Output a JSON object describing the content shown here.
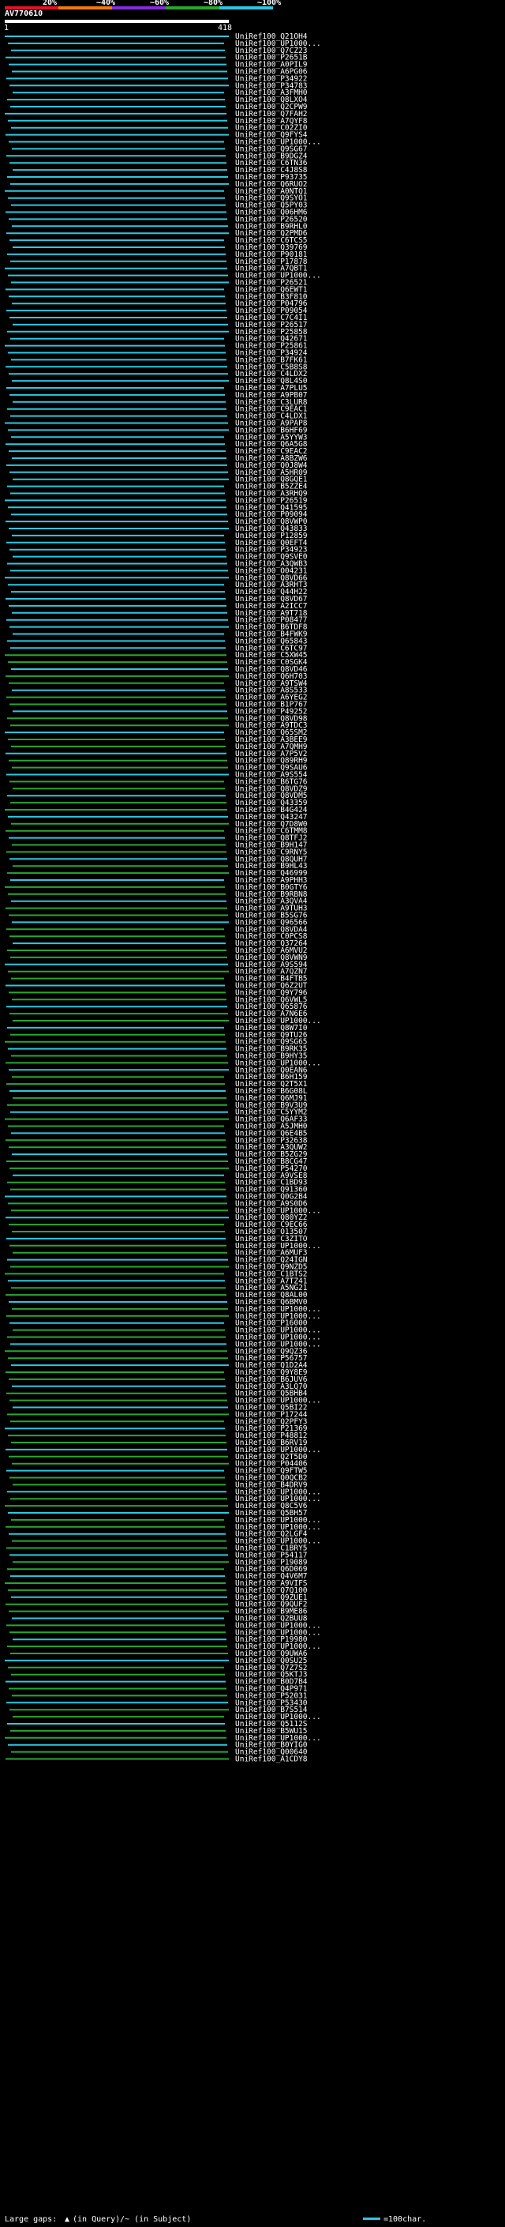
{
  "chart_data": {
    "type": "alignment-overview",
    "title": "AV770610",
    "query_start_label": "1",
    "query_end_label": "418",
    "identity_legend": [
      {
        "label": "20%",
        "color": "#e8102a"
      },
      {
        "label": "~40%",
        "color": "#f07a10"
      },
      {
        "label": "~60%",
        "color": "#8a2be2"
      },
      {
        "label": "~80%",
        "color": "#2aa630"
      },
      {
        "label": "~100%",
        "color": "#2ec7e0"
      }
    ],
    "query_length": 418,
    "footer": {
      "gaps_text": "Large gaps: ",
      "gaps_query": "(in Query)",
      "gaps_subject": "/~ (in Subject)",
      "scale_text": "=100char."
    },
    "hits": [
      "UniRef100_Q21OH4",
      "UniRef100_UP1000...",
      "UniRef100_Q7CZ23",
      "UniRef100_P2651B",
      "UniRef100_A0PIL9",
      "UniRef100_A6PG06",
      "UniRef100_P34922",
      "UniRef100_P34783",
      "UniRef100_A3FMH0",
      "UniRef100_Q8LXO4",
      "UniRef100_Q2CPW9",
      "UniRef100_Q7FAH2",
      "UniRef100_A7QYF8",
      "UniRef100_C02ZI0",
      "UniRef100_Q9FYS4",
      "UniRef100_UP1000...",
      "UniRef100_Q9SG67",
      "UniRef100_B9DGZ4",
      "UniRef100_C6TN36",
      "UniRef100_C4J8S8",
      "UniRef100_P93735",
      "UniRef100_Q6RUO2",
      "UniRef100_A0NTQ1",
      "UniRef100_Q9SYO1",
      "UniRef100_Q5PY03",
      "UniRef100_Q06HM6",
      "UniRef100_P26520",
      "UniRef100_B9RHL0",
      "UniRef100_Q2PMD6",
      "UniRef100_C6TCS5",
      "UniRef100_Q39769",
      "UniRef100_P90181",
      "UniRef100_P17878",
      "UniRef100_A7QBT1",
      "UniRef100_UP1000...",
      "UniRef100_P26521",
      "UniRef100_Q6EWT1",
      "UniRef100_B3F810",
      "UniRef100_P04796",
      "UniRef100_P09054",
      "UniRef100_C7C4I1",
      "UniRef100_P26517",
      "UniRef100_P25858",
      "UniRef100_Q42671",
      "UniRef100_P25861",
      "UniRef100_P34924",
      "UniRef100_B7FK61",
      "UniRef100_C5B8S8",
      "UniRef100_C4LDX2",
      "UniRef100_Q8L4S0",
      "UniRef100_A7PLU5",
      "UniRef100_A9PB07",
      "UniRef100_C3LUR8",
      "UniRef100_C9EAC1",
      "UniRef100_C4LDX1",
      "UniRef100_A9PAP8",
      "UniRef100_B6HF69",
      "UniRef100_A5YYW3",
      "UniRef100_Q6A5G8",
      "UniRef100_C9EAC2",
      "UniRef100_A8BZW6",
      "UniRef100_Q0J8W4",
      "UniRef100_A5HR09",
      "UniRef100_Q8GQE1",
      "UniRef100_B5ZZE4",
      "UniRef100_A3RHQ9",
      "UniRef100_P26519",
      "UniRef100_Q41595",
      "UniRef100_P09094",
      "UniRef100_Q8VWP0",
      "UniRef100_Q43833",
      "UniRef100_P12859",
      "UniRef100_Q0EFT4",
      "UniRef100_P34923",
      "UniRef100_Q9SVE0",
      "UniRef100_A3QWB3",
      "UniRef100_O04231",
      "UniRef100_Q8VD66",
      "UniRef100_A3RHT3",
      "UniRef100_Q44H22",
      "UniRef100_Q8VD67",
      "UniRef100_A2ICC7",
      "UniRef100_A9T718",
      "UniRef100_P08477",
      "UniRef100_B6TDF8",
      "UniRef100_B4FWK9",
      "UniRef100_Q65843",
      "UniRef100_C6TC97",
      "UniRef100_C5XW45",
      "UniRef100_C0SGK4",
      "UniRef100_Q8VD46",
      "UniRef100_Q6H703",
      "UniRef100_A9TSW4",
      "UniRef100_A8S533",
      "UniRef100_A6YEG2",
      "UniRef100_B1P767",
      "UniRef100_P49252",
      "UniRef100_Q8VD98",
      "UniRef100_A9TDC3",
      "UniRef100_Q65SM2",
      "UniRef100_A3BEE9",
      "UniRef100_A7QMH9",
      "UniRef100_A7P5V2",
      "UniRef100_Q89RH9",
      "UniRef100_Q9SAU6",
      "UniRef100_A9S554",
      "UniRef100_B6TG76",
      "UniRef100_Q8VDZ9",
      "UniRef100_Q8VDM5",
      "UniRef100_Q43359",
      "UniRef100_B4G424",
      "UniRef100_Q43247",
      "UniRef100_Q7D8W0",
      "UniRef100_C6TMM8",
      "UniRef100_Q8TFJ2",
      "UniRef100_B9H147",
      "UniRef100_C9RNY5",
      "UniRef100_Q8QUH7",
      "UniRef100_B9HL43",
      "UniRef100_Q46999",
      "UniRef100_A9PHH3",
      "UniRef100_B0GTY6",
      "UniRef100_B9RBN8",
      "UniRef100_A3QVA4",
      "UniRef100_A9TUH3",
      "UniRef100_B5SG76",
      "UniRef100_Q96566",
      "UniRef100_Q8VDA4",
      "UniRef100_C0PCS8",
      "UniRef100_Q37264",
      "UniRef100_A6MVU2",
      "UniRef100_Q8VWN9",
      "UniRef100_A9S594",
      "UniRef100_A7QZN7",
      "UniRef100_B4FTB5",
      "UniRef100_Q6Z2UT",
      "UniRef100_Q9Y796",
      "UniRef100_Q6VWL5",
      "UniRef100_Q65876",
      "UniRef100_A7N6E6",
      "UniRef100_UP1000...",
      "UniRef100_Q8W7I0",
      "UniRef100_Q9TU26",
      "UniRef100_Q9SG65",
      "UniRef100_B9RK35",
      "UniRef100_B9HY35",
      "UniRef100_UP1000...",
      "UniRef100_Q0EAN6",
      "UniRef100_B6H159",
      "UniRef100_Q2T5X1",
      "UniRef100_B6G08L",
      "UniRef100_Q6MJ91",
      "UniRef100_B9V3U9",
      "UniRef100_C5YYM2",
      "UniRef100_Q6AF33",
      "UniRef100_A5JMH0",
      "UniRef100_Q6E4B5",
      "UniRef100_P32638",
      "UniRef100_A3QUW2",
      "UniRef100_B5ZG29",
      "UniRef100_B8CG47",
      "UniRef100_P54270",
      "UniRef100_A9VSE8",
      "UniRef100_C1BD93",
      "UniRef100_Q91360",
      "UniRef100_Q0G2B4",
      "UniRef100_A9S0D6",
      "UniRef100_UP1000...",
      "UniRef100_Q80YZ2",
      "UniRef100_C9EC66",
      "UniRef100_O13507",
      "UniRef100_C3ZITO",
      "UniRef100_UP1000...",
      "UniRef100_A6MUF3",
      "UniRef100_Q24IGN",
      "UniRef100_Q9NZD5",
      "UniRef100_C1BTS2",
      "UniRef100_A7TZ41",
      "UniRef100_A5NG21",
      "UniRef100_Q8AL00",
      "UniRef100_Q6BMV0",
      "UniRef100_UP1000...",
      "UniRef100_UP1000...",
      "UniRef100_P16000",
      "UniRef100_UP1000...",
      "UniRef100_UP1000...",
      "UniRef100_UP1000...",
      "UniRef100_Q9QZ36",
      "UniRef100_P56757",
      "UniRef100_Q1D2A4",
      "UniRef100_Q9Y8E9",
      "UniRef100_B6JUV6",
      "UniRef100_A3LQ70",
      "UniRef100_Q5BHB4",
      "UniRef100_UP1000...",
      "UniRef100_Q5BI22",
      "UniRef100_P17244",
      "UniRef100_Q2PFY3",
      "UniRef100_P21369",
      "UniRef100_P48812",
      "UniRef100_B6RV19",
      "UniRef100_UP1000...",
      "UniRef100_Q2T5D0",
      "UniRef100_P04406",
      "UniRef100_Q9FTW5",
      "UniRef100_Q0QCB2",
      "UniRef100_B4DRV9",
      "UniRef100_UP1000...",
      "UniRef100_UP1000...",
      "UniRef100_Q8C5V6",
      "UniRef100_Q5BH57",
      "UniRef100_UP1000...",
      "UniRef100_UP1000...",
      "UniRef100_Q2LGF4",
      "UniRef100_UP1000...",
      "UniRef100_C1BRY5",
      "UniRef100_P54117",
      "UniRef100_P19089",
      "UniRef100_Q6D069",
      "UniRef100_Q4V6M7",
      "UniRef100_A9VIFS",
      "UniRef100_Q7Q100",
      "UniRef100_Q9ZUE1",
      "UniRef100_Q9QUF2",
      "UniRef100_B9ME86",
      "UniRef100_Q2BUU8",
      "UniRef100_UP1000...",
      "UniRef100_UP1000...",
      "UniRef100_P19980",
      "UniRef100_UP1000...",
      "UniRef100_Q9UWA6",
      "UniRef100_Q0SU25",
      "UniRef100_Q7Z7S2",
      "UniRef100_Q5KTJ3",
      "UniRef100_B0D7B4",
      "UniRef100_Q4P971",
      "UniRef100_P52031",
      "UniRef100_P53430",
      "UniRef100_B7S514",
      "UniRef100_UP1000...",
      "UniRef100_Q5112S",
      "UniRef100_B5WU15",
      "UniRef100_UP1000...",
      "UniRef100_B0YIG0",
      "UniRef100_Q00640",
      "UniRef100_A1CDY8"
    ]
  }
}
